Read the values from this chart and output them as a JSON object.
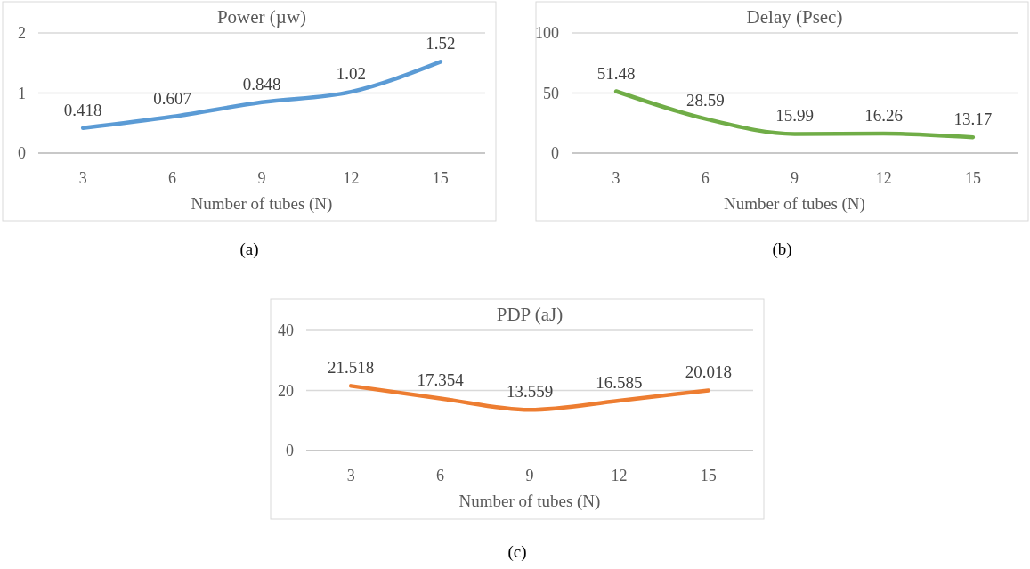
{
  "chart_data": [
    {
      "type": "line",
      "title": "Power (µw)",
      "xlabel": "Number of tubes (N)",
      "categories": [
        "3",
        "6",
        "9",
        "12",
        "15"
      ],
      "series": [
        {
          "color": "#5b9bd5",
          "values": [
            0.418,
            0.607,
            0.848,
            1.02,
            1.52
          ]
        }
      ],
      "ylim": [
        0,
        2
      ],
      "yticks": [
        0,
        1,
        2
      ],
      "grid": "y",
      "data_labels": true,
      "annotations": [
        "(a)"
      ]
    },
    {
      "type": "line",
      "title": "Delay (Psec)",
      "xlabel": "Number of tubes (N)",
      "categories": [
        "3",
        "6",
        "9",
        "12",
        "15"
      ],
      "series": [
        {
          "color": "#70ad47",
          "values": [
            51.48,
            28.59,
            15.99,
            16.26,
            13.17
          ]
        }
      ],
      "ylim": [
        0,
        100
      ],
      "yticks": [
        0,
        50,
        100
      ],
      "grid": "y",
      "data_labels": true,
      "annotations": [
        "(b)"
      ]
    },
    {
      "type": "line",
      "title": "PDP (aJ)",
      "xlabel": "Number of tubes (N)",
      "categories": [
        "3",
        "6",
        "9",
        "12",
        "15"
      ],
      "series": [
        {
          "color": "#ed7d31",
          "values": [
            21.518,
            17.354,
            13.559,
            16.585,
            20.018
          ]
        }
      ],
      "ylim": [
        0,
        40
      ],
      "yticks": [
        0,
        20,
        40
      ],
      "grid": "y",
      "data_labels": true,
      "annotations": [
        "(c)"
      ]
    }
  ]
}
